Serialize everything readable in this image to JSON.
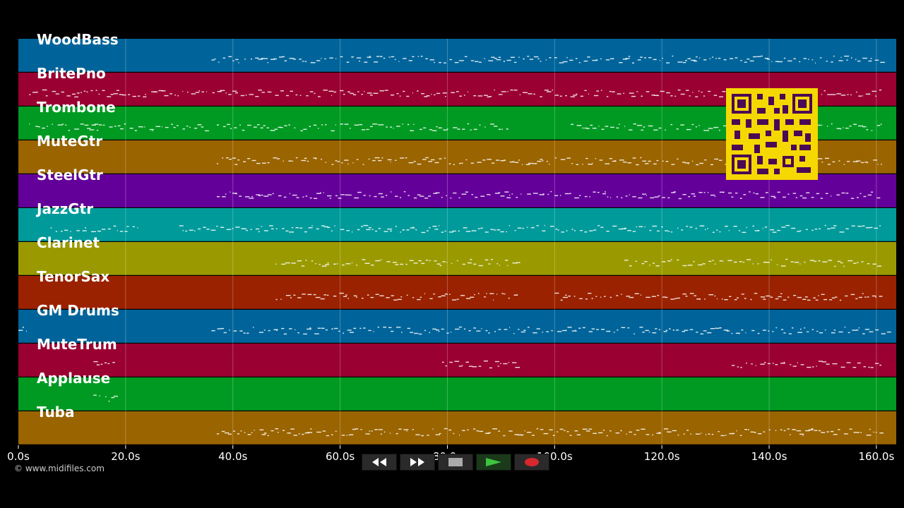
{
  "tracks": [
    {
      "name": "WoodBass",
      "color": "#00649a"
    },
    {
      "name": "BritePno",
      "color": "#9a0032"
    },
    {
      "name": "Trombone",
      "color": "#009a22"
    },
    {
      "name": "MuteGtr",
      "color": "#9a6400"
    },
    {
      "name": "SteelGtr",
      "color": "#64009a"
    },
    {
      "name": "JazzGtr",
      "color": "#009a9a"
    },
    {
      "name": "Clarinet",
      "color": "#9a9a00"
    },
    {
      "name": "TenorSax",
      "color": "#9a2200"
    },
    {
      "name": "GM Drums",
      "color": "#00649a"
    },
    {
      "name": "MuteTrum",
      "color": "#9a0032"
    },
    {
      "name": "Applause",
      "color": "#009a22"
    },
    {
      "name": "Tuba",
      "color": "#9a6400"
    }
  ],
  "timeline": {
    "ticks": [
      "0.0s",
      "20.0s",
      "40.0s",
      "60.0s",
      "80.0s",
      "100.0s",
      "120.0s",
      "140.0s",
      "160.0s"
    ]
  },
  "copyright": "© www.midifiles.com",
  "controls": {
    "rewind_icon": "rewind-icon",
    "fast_forward_icon": "fast-forward-icon",
    "stop_icon": "stop-icon",
    "play_icon": "play-icon",
    "record_icon": "record-icon"
  },
  "qr_icon": "qr-code-icon"
}
